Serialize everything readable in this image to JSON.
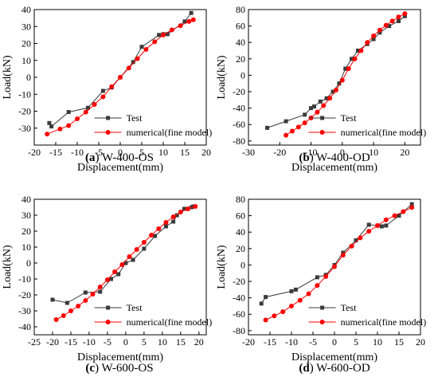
{
  "colors": {
    "test": "#3a3a3a",
    "numerical": "#ff0000",
    "axis": "#000000"
  },
  "chart_data": [
    {
      "type": "line",
      "panel_label": "(a)",
      "caption": "W-400-OS",
      "xlabel": "Displacement(mm)",
      "ylabel": "Load(kN)",
      "xlim": [
        -20,
        20
      ],
      "ylim": [
        -40,
        40
      ],
      "xticks": [
        -20,
        -15,
        -10,
        -5,
        0,
        5,
        10,
        15,
        20
      ],
      "yticks": [
        -30,
        -20,
        -10,
        0,
        10,
        20,
        30,
        40
      ],
      "grid": false,
      "legend": "lower-right",
      "series": [
        {
          "name": "Test",
          "marker": "square",
          "x": [
            -16.5,
            -16,
            -12,
            -7.5,
            -4,
            -2,
            0,
            3,
            5,
            9,
            10,
            11,
            15,
            16.5
          ],
          "y": [
            -27,
            -29,
            -20.5,
            -18,
            -8,
            -6,
            0,
            9,
            18,
            25,
            25.5,
            25.5,
            33,
            38
          ]
        },
        {
          "name": "numerical(fine model)",
          "marker": "circle",
          "x": [
            -17,
            -14,
            -12,
            -10,
            -8,
            -6,
            -4,
            -2,
            0,
            2,
            4,
            6,
            8,
            10,
            12,
            14,
            16,
            17
          ],
          "y": [
            -33.5,
            -30.5,
            -28.5,
            -24.5,
            -20.5,
            -16,
            -11.5,
            -5.5,
            0,
            5.5,
            11,
            16.5,
            21,
            25,
            28,
            30.5,
            33,
            34
          ]
        }
      ]
    },
    {
      "type": "line",
      "panel_label": "(b)",
      "caption": "W-400-OD",
      "xlabel": "Displacement(mm)",
      "ylabel": "Load(kN)",
      "xlim": [
        -30,
        25
      ],
      "ylim": [
        -85,
        80
      ],
      "xticks": [
        -30,
        -20,
        -10,
        0,
        10,
        20
      ],
      "yticks": [
        -80,
        -60,
        -40,
        -20,
        0,
        20,
        40,
        60,
        80
      ],
      "grid": false,
      "legend": "lower-right",
      "series": [
        {
          "name": "Test",
          "marker": "square",
          "x": [
            -24,
            -18,
            -12,
            -10,
            -9,
            -7,
            -5,
            -3,
            -1,
            1,
            3,
            5,
            8,
            10,
            12,
            15,
            18,
            20
          ],
          "y": [
            -64,
            -56,
            -48,
            -40,
            -38,
            -32,
            -28,
            -20,
            -10,
            8,
            20,
            30,
            38,
            44,
            52,
            60,
            66,
            72
          ]
        },
        {
          "name": "numerical(fine model)",
          "marker": "circle",
          "x": [
            -18,
            -16,
            -14,
            -12,
            -10,
            -8,
            -6,
            -4,
            -2,
            0,
            2,
            4,
            6,
            8,
            10,
            12,
            14,
            16,
            18,
            20
          ],
          "y": [
            -73,
            -68,
            -63,
            -58,
            -52,
            -45,
            -37,
            -28,
            -18,
            -6,
            8,
            20,
            30,
            40,
            48,
            55,
            61,
            66,
            71,
            75
          ]
        }
      ]
    },
    {
      "type": "line",
      "panel_label": "(c)",
      "caption": "W-600-OS",
      "xlabel": "Displacement(mm)",
      "ylabel": "Load(kN)",
      "xlim": [
        -25,
        22
      ],
      "ylim": [
        -45,
        40
      ],
      "xticks": [
        -25,
        -20,
        -15,
        -10,
        -5,
        0,
        5,
        10,
        15,
        20
      ],
      "yticks": [
        -40,
        -30,
        -20,
        -10,
        0,
        10,
        20,
        30,
        40
      ],
      "grid": false,
      "legend": "lower-right",
      "series": [
        {
          "name": "Test",
          "marker": "square",
          "x": [
            -20,
            -16,
            -11,
            -7,
            -4,
            -2,
            0,
            2,
            5,
            8,
            11,
            13,
            14,
            16,
            18,
            18.5
          ],
          "y": [
            -23,
            -25,
            -18.5,
            -18,
            -10,
            -7,
            0,
            2,
            9,
            17,
            23,
            26,
            30,
            34,
            35,
            35.5
          ]
        },
        {
          "name": "numerical(fine model)",
          "marker": "circle",
          "x": [
            -19,
            -17,
            -15,
            -13,
            -11,
            -9,
            -7,
            -5,
            -3,
            -1,
            1,
            3,
            5,
            7,
            9,
            11,
            13,
            15,
            17,
            19
          ],
          "y": [
            -35.5,
            -33,
            -30,
            -27,
            -23.5,
            -19.5,
            -15,
            -10.5,
            -5.5,
            -1,
            4,
            8.5,
            13,
            17.5,
            21.5,
            25.5,
            29,
            32,
            34,
            35.5
          ]
        }
      ]
    },
    {
      "type": "line",
      "panel_label": "(d)",
      "caption": "W-600-OD",
      "xlabel": "Displacement(mm)",
      "ylabel": "Load(kN)",
      "xlim": [
        -20,
        20
      ],
      "ylim": [
        -85,
        80
      ],
      "xticks": [
        -20,
        -15,
        -10,
        -5,
        0,
        5,
        10,
        15,
        20
      ],
      "yticks": [
        -80,
        -60,
        -40,
        -20,
        0,
        20,
        40,
        60,
        80
      ],
      "grid": false,
      "legend": "lower-right",
      "series": [
        {
          "name": "Test",
          "marker": "square",
          "x": [
            -17,
            -16,
            -10,
            -9,
            -4,
            -2,
            0,
            2,
            5,
            8,
            10,
            11,
            12,
            15,
            18
          ],
          "y": [
            -47,
            -39,
            -32,
            -30,
            -15,
            -12,
            0,
            15,
            30,
            49,
            48,
            47,
            48,
            60,
            74
          ]
        },
        {
          "name": "numerical(fine model)",
          "marker": "circle",
          "x": [
            -16,
            -14,
            -12,
            -10,
            -8,
            -6,
            -4,
            -2,
            0,
            2,
            4,
            6,
            8,
            10,
            12,
            14,
            16,
            18
          ],
          "y": [
            -67,
            -62,
            -57,
            -50,
            -43,
            -35,
            -25,
            -14,
            -2,
            12,
            23,
            33,
            41,
            48,
            55,
            60,
            65,
            70
          ]
        }
      ]
    }
  ]
}
